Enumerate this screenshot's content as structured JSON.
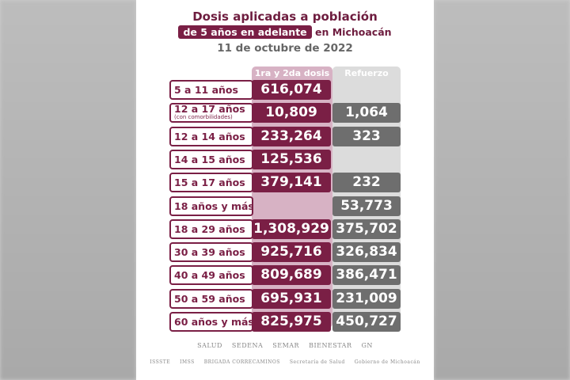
{
  "title": "Dosis aplicadas a población",
  "subtitle_highlight": "de 5 años en adelante",
  "subtitle_rest": "en Michoacán",
  "date": "11 de octubre de 2022",
  "columns": [
    "1ra y 2da dosis",
    "Refuerzo"
  ],
  "rows": [
    {
      "label": "5 a 11 años",
      "dose": "616,074",
      "booster": ""
    },
    {
      "label": "12 a 17 años",
      "note": "(con comorbilidades)",
      "dose": "10,809",
      "booster": "1,064"
    },
    {
      "label": "12 a 14 años",
      "dose": "233,264",
      "booster": "323"
    },
    {
      "label": "14 a 15 años",
      "dose": "125,536",
      "booster": ""
    },
    {
      "label": "15 a 17 años",
      "dose": "379,141",
      "booster": "232"
    },
    {
      "label": "18 años y más",
      "dose": "",
      "booster": "53,773"
    },
    {
      "label": "18 a 29 años",
      "dose": "1,308,929",
      "booster": "375,702"
    },
    {
      "label": "30 a 39 años",
      "dose": "925,716",
      "booster": "326,834"
    },
    {
      "label": "40 a 49 años",
      "dose": "809,689",
      "booster": "386,471"
    },
    {
      "label": "50 a 59 años",
      "dose": "695,931",
      "booster": "231,009"
    },
    {
      "label": "60 años y más",
      "dose": "825,975",
      "booster": "450,727"
    }
  ],
  "logos_row1": [
    "SALUD",
    "SEDENA",
    "SEMAR",
    "BIENESTAR",
    "GN"
  ],
  "logos_row2": [
    "ISSSTE",
    "IMSS",
    "BRIGADA CORRECAMINOS",
    "Secretaría de Salud",
    "Gobierno de Michoacán"
  ],
  "colors": {
    "maroon": "#7a1f45",
    "grey": "#6e6e6e"
  }
}
